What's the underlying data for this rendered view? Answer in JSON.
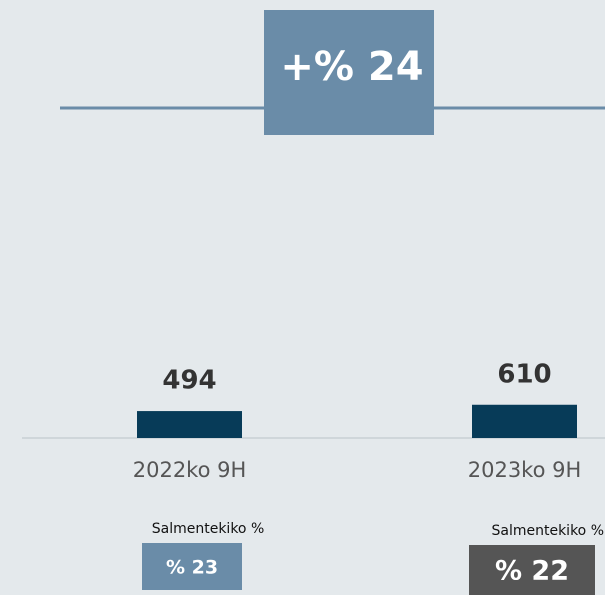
{
  "chart_data": {
    "type": "bar",
    "categories": [
      "2022ko 9H",
      "2023ko 9H"
    ],
    "values": [
      494,
      610
    ],
    "color": "#073b58",
    "growth_label": "+% 24",
    "ratio_label": "Salmentekiko %",
    "ratio_values": [
      "% 23",
      "% 22"
    ]
  }
}
